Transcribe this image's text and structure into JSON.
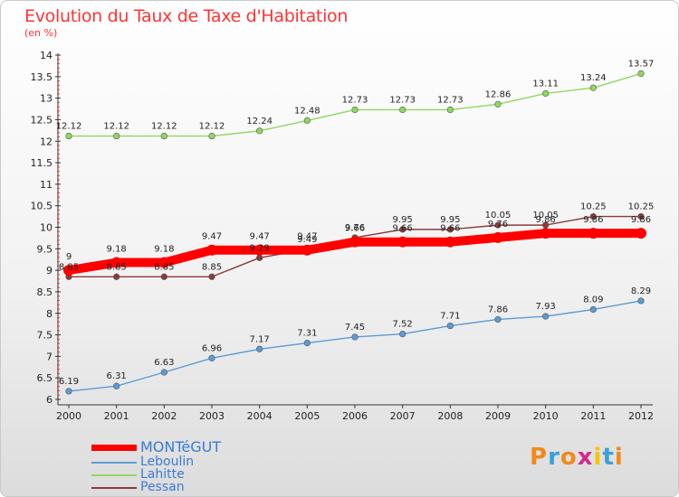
{
  "title": "Evolution du Taux de Taxe d'Habitation",
  "subtitle": "(en %)",
  "logo": {
    "letters": [
      "P",
      "r",
      "o",
      "x",
      "i",
      "t",
      "i"
    ],
    "colors": [
      "#f08a1c",
      "#3aa0d8",
      "#f08a1c",
      "#d22a8c",
      "#f5c400",
      "#3aa0d8",
      "#f08a1c"
    ]
  },
  "chart_data": {
    "type": "line",
    "x": [
      "2000",
      "2001",
      "2002",
      "2003",
      "2004",
      "2005",
      "2006",
      "2007",
      "2008",
      "2009",
      "2010",
      "2011",
      "2012"
    ],
    "ylim": [
      6,
      14
    ],
    "yticks": [
      "6",
      "6.5",
      "7",
      "7.5",
      "8",
      "8.5",
      "9",
      "9.5",
      "10",
      "10.5",
      "11",
      "11.5",
      "12",
      "12.5",
      "13",
      "13.5",
      "14"
    ],
    "grid": false,
    "legend_position": "bottom-left",
    "series": [
      {
        "name": "MONTéGUT",
        "color": "#ff0000",
        "emphasis": true,
        "values": [
          9,
          9.18,
          9.18,
          9.47,
          9.47,
          9.47,
          9.66,
          9.66,
          9.66,
          9.76,
          9.86,
          9.86,
          9.86
        ],
        "labels": [
          "9",
          "9.18",
          "9.18",
          "9.47",
          "9.47",
          "9.47",
          "9.66",
          "9.66",
          "9.66",
          "9.76",
          "9.86",
          "9.86",
          "9.86"
        ]
      },
      {
        "name": "Leboulin",
        "color": "#5b9bd5",
        "values": [
          6.19,
          6.31,
          6.63,
          6.96,
          7.17,
          7.31,
          7.45,
          7.52,
          7.71,
          7.86,
          7.93,
          8.09,
          8.29
        ],
        "labels": [
          "6.19",
          "6.31",
          "6.63",
          "6.96",
          "7.17",
          "7.31",
          "7.45",
          "7.52",
          "7.71",
          "7.86",
          "7.93",
          "8.09",
          "8.29"
        ]
      },
      {
        "name": "Lahitte",
        "color": "#8fd860",
        "values": [
          12.12,
          12.12,
          12.12,
          12.12,
          12.24,
          12.48,
          12.73,
          12.73,
          12.73,
          12.86,
          13.11,
          13.24,
          13.57
        ],
        "labels": [
          "12.12",
          "12.12",
          "12.12",
          "12.12",
          "12.24",
          "12.48",
          "12.73",
          "12.73",
          "12.73",
          "12.86",
          "13.11",
          "13.24",
          "13.57"
        ]
      },
      {
        "name": "Pessan",
        "color": "#8b3a3a",
        "values": [
          8.85,
          8.85,
          8.85,
          8.85,
          9.29,
          9.49,
          9.76,
          9.95,
          9.95,
          10.05,
          10.05,
          10.25,
          10.25
        ],
        "labels": [
          "8.85",
          "8.85",
          "8.85",
          "8.85",
          "9.29",
          "9.49",
          "9.76",
          "9.95",
          "9.95",
          "10.05",
          "10.05",
          "10.25",
          "10.25"
        ]
      }
    ]
  }
}
